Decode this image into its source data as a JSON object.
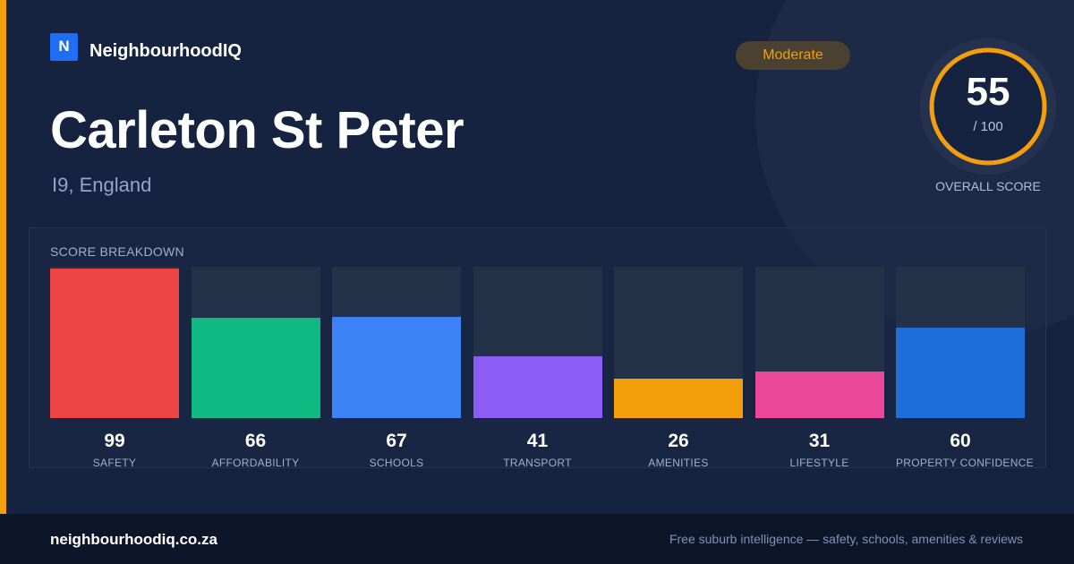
{
  "brand": {
    "logo_letter": "N",
    "name": "NeighbourhoodIQ"
  },
  "suburb": {
    "name": "Carleton St Peter",
    "location": "I9, England"
  },
  "badge": {
    "label": "Moderate",
    "color": "#f59e0b"
  },
  "overall": {
    "score": "55",
    "max_label": "/ 100",
    "label": "OVERALL SCORE",
    "fraction": 0.55,
    "ring_color": "#f59e0b"
  },
  "breakdown": {
    "title": "SCORE BREAKDOWN",
    "items": [
      {
        "label": "SAFETY",
        "value": "99",
        "score": 99,
        "color": "#ef4444"
      },
      {
        "label": "AFFORDABILITY",
        "value": "66",
        "score": 66,
        "color": "#10b981"
      },
      {
        "label": "SCHOOLS",
        "value": "67",
        "score": 67,
        "color": "#3b82f6"
      },
      {
        "label": "TRANSPORT",
        "value": "41",
        "score": 41,
        "color": "#8b5cf6"
      },
      {
        "label": "AMENITIES",
        "value": "26",
        "score": 26,
        "color": "#f59e0b"
      },
      {
        "label": "LIFESTYLE",
        "value": "31",
        "score": 31,
        "color": "#ec4899"
      },
      {
        "label": "PROPERTY CONFIDENCE",
        "value": "60",
        "score": 60,
        "color": "#1d6ed8"
      }
    ]
  },
  "footer": {
    "url": "neighbourhoodiq.co.za",
    "tagline": "Free suburb intelligence — safety, schools, amenities & reviews"
  }
}
